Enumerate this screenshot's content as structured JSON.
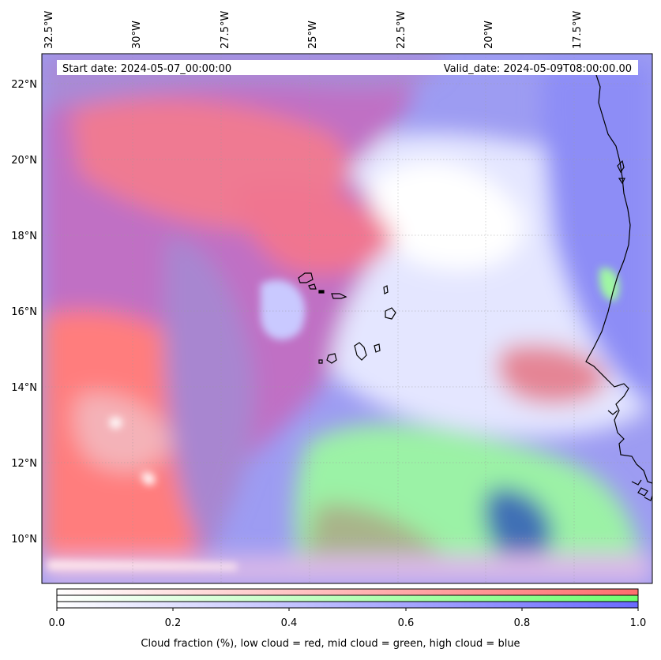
{
  "map": {
    "start_label": "Start date: 2024-05-07_00:00:00",
    "valid_label": "Valid_date: 2024-05-09T08:00:00.00",
    "lon_ticks": [
      "32.5°W",
      "30°W",
      "27.5°W",
      "25°W",
      "22.5°W",
      "20°W",
      "17.5°W"
    ],
    "lat_ticks": [
      "22°N",
      "20°N",
      "18°N",
      "16°N",
      "14°N",
      "12°N",
      "10°N"
    ],
    "extent": {
      "lon_min": -32.6,
      "lon_max": -15.4,
      "lat_min": 8.9,
      "lat_max": 22.8
    }
  },
  "colorbar": {
    "ticks": [
      "0.0",
      "0.2",
      "0.4",
      "0.6",
      "0.8",
      "1.0"
    ],
    "caption": "Cloud fraction (%), low cloud = red, mid cloud = green, high cloud = blue",
    "colors": {
      "low": "#ff7070",
      "mid": "#7aff7a",
      "high": "#7a7aff"
    }
  }
}
